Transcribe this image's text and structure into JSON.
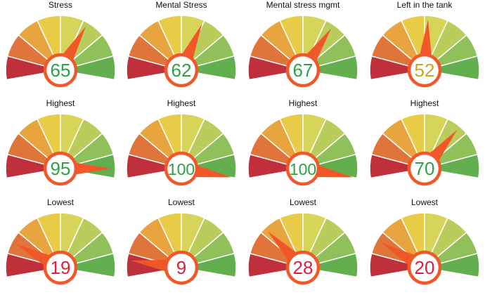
{
  "colors": {
    "segments": [
      "#c0303b",
      "#e0753c",
      "#e8a43f",
      "#e8cb47",
      "#d7d45a",
      "#b9cc5c",
      "#8fc05a",
      "#63ae4f"
    ],
    "needle": "#f0582a",
    "ring": "#f0582a",
    "value_green": "#2da244",
    "value_yellow": "#c9a41e",
    "value_red": "#e01e3c"
  },
  "gauges": [
    {
      "title": "Stress",
      "value": "65",
      "level": 65,
      "value_color": "green"
    },
    {
      "title": "Mental Stress",
      "value": "62",
      "level": 62,
      "value_color": "green"
    },
    {
      "title": "Mental stress mgmt",
      "value": "67",
      "level": 67,
      "value_color": "green"
    },
    {
      "title": "Left in the tank",
      "value": "52",
      "level": 52,
      "value_color": "yellow"
    },
    {
      "title": "Highest",
      "value": "95",
      "level": 95,
      "value_color": "green"
    },
    {
      "title": "Highest",
      "value": "100",
      "level": 100,
      "value_color": "green"
    },
    {
      "title": "Highest",
      "value": "100",
      "level": 100,
      "value_color": "green"
    },
    {
      "title": "Highest",
      "value": "70",
      "level": 70,
      "value_color": "green"
    },
    {
      "title": "Lowest",
      "value": "19",
      "level": 19,
      "value_color": "red"
    },
    {
      "title": "Lowest",
      "value": "9",
      "level": 9,
      "value_color": "red"
    },
    {
      "title": "Lowest",
      "value": "28",
      "level": 28,
      "value_color": "red"
    },
    {
      "title": "Lowest",
      "value": "20",
      "level": 20,
      "value_color": "red"
    }
  ]
}
